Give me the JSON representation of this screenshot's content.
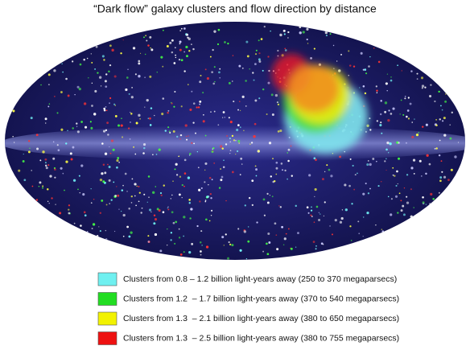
{
  "title": "“Dark flow” galaxy clusters and flow direction by distance",
  "legend": [
    {
      "label": "Clusters from 0.8 – 1.2 billion light-years away (250 to 370 megaparsecs)",
      "color": "#6ff0f0"
    },
    {
      "label": "Clusters from 1.2  – 1.7 billion light-years away (370 to 540 megaparsecs)",
      "color": "#22dd22"
    },
    {
      "label": "Clusters from 1.3  – 2.1 billion light-years away (380 to 650 megaparsecs)",
      "color": "#f2f200"
    },
    {
      "label": "Clusters from 1.3  – 2.5 billion light-years away (380 to 755 megaparsecs)",
      "color": "#ee1111"
    }
  ]
}
